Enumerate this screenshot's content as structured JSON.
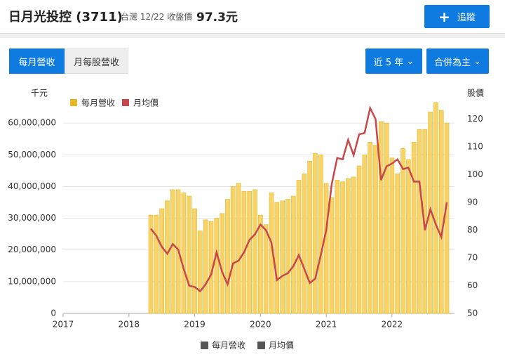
{
  "header": {
    "title": "日月光投控 (3711)",
    "market_info": "台灣 12/22 收盤價",
    "price": "97.3元",
    "follow_button": "追蹤"
  },
  "tabs": [
    "每月營收",
    "月每股營收"
  ],
  "dropdowns": [
    "近 5 年",
    "合併為主"
  ],
  "chart_data": {
    "type": "bar-line",
    "y_label": "千元",
    "y2_label": "股價",
    "x": [
      2018.333,
      2018.417,
      2018.5,
      2018.583,
      2018.667,
      2018.75,
      2018.833,
      2018.917,
      2019,
      2019.083,
      2019.167,
      2019.25,
      2019.333,
      2019.417,
      2019.5,
      2019.583,
      2019.667,
      2019.75,
      2019.833,
      2019.917,
      2020,
      2020.083,
      2020.167,
      2020.25,
      2020.333,
      2020.417,
      2020.5,
      2020.583,
      2020.667,
      2020.75,
      2020.833,
      2020.917,
      2021,
      2021.083,
      2021.167,
      2021.25,
      2021.333,
      2021.417,
      2021.5,
      2021.583,
      2021.667,
      2021.75,
      2021.833,
      2021.917,
      2022,
      2022.083,
      2022.167,
      2022.25,
      2022.333,
      2022.417,
      2022.5,
      2022.583,
      2022.667,
      2022.75,
      2022.833
    ],
    "series": [
      {
        "name": "每月營收",
        "type": "bar",
        "color": "#f6d36b",
        "values": [
          31000000,
          31000000,
          33000000,
          35500000,
          39000000,
          39000000,
          38000000,
          37000000,
          33000000,
          26000000,
          29500000,
          29000000,
          30000000,
          31500000,
          36000000,
          40000000,
          41000000,
          38500000,
          38500000,
          39000000,
          31000000,
          28000000,
          38000000,
          35000000,
          35500000,
          36000000,
          37000000,
          42000000,
          44000000,
          48000000,
          50500000,
          50000000,
          41000000,
          36500000,
          42000000,
          41500000,
          42500000,
          43000000,
          46500000,
          50000000,
          54000000,
          53000000,
          60500000,
          60000000,
          49000000,
          44000000,
          52000000,
          48500000,
          54000000,
          58000000,
          58000000,
          63500000,
          66500000,
          64000000,
          60000000
        ]
      },
      {
        "name": "月均價",
        "type": "line",
        "axis": "y2",
        "color": "#c8474a",
        "values": [
          80.5,
          78,
          74,
          71.5,
          75,
          73,
          66,
          60,
          59.5,
          58,
          60.5,
          64,
          72,
          65,
          60.5,
          68,
          69,
          72,
          76.5,
          78.5,
          82,
          80,
          75.5,
          62,
          63.5,
          64.5,
          67,
          71,
          66,
          61,
          62.5,
          71,
          80,
          96.5,
          106,
          105.5,
          112.5,
          107,
          114.5,
          115,
          124,
          120,
          98,
          103,
          104,
          105.5,
          102,
          102.5,
          97.5,
          97.5,
          80,
          87.5,
          82,
          77.5,
          90
        ]
      }
    ],
    "xlim": [
      2017,
      2022.95
    ],
    "xticks": [
      2017,
      2018,
      2019,
      2020,
      2021,
      2022
    ],
    "ylim": [
      0,
      70000000
    ],
    "yticks": [
      0,
      {
        "value": 10000000,
        "label": "10,000,000"
      },
      {
        "value": 20000000,
        "label": "20,000,000"
      },
      {
        "value": 30000000,
        "label": "30,000,000"
      },
      {
        "value": 40000000,
        "label": "40,000,000"
      },
      {
        "value": 50000000,
        "label": "50,000,000"
      },
      {
        "value": 60000000,
        "label": "60,000,000"
      }
    ],
    "y2lim": [
      50,
      130
    ],
    "y2ticks": [
      50,
      60,
      70,
      80,
      90,
      100,
      110,
      120
    ],
    "grid": true
  }
}
